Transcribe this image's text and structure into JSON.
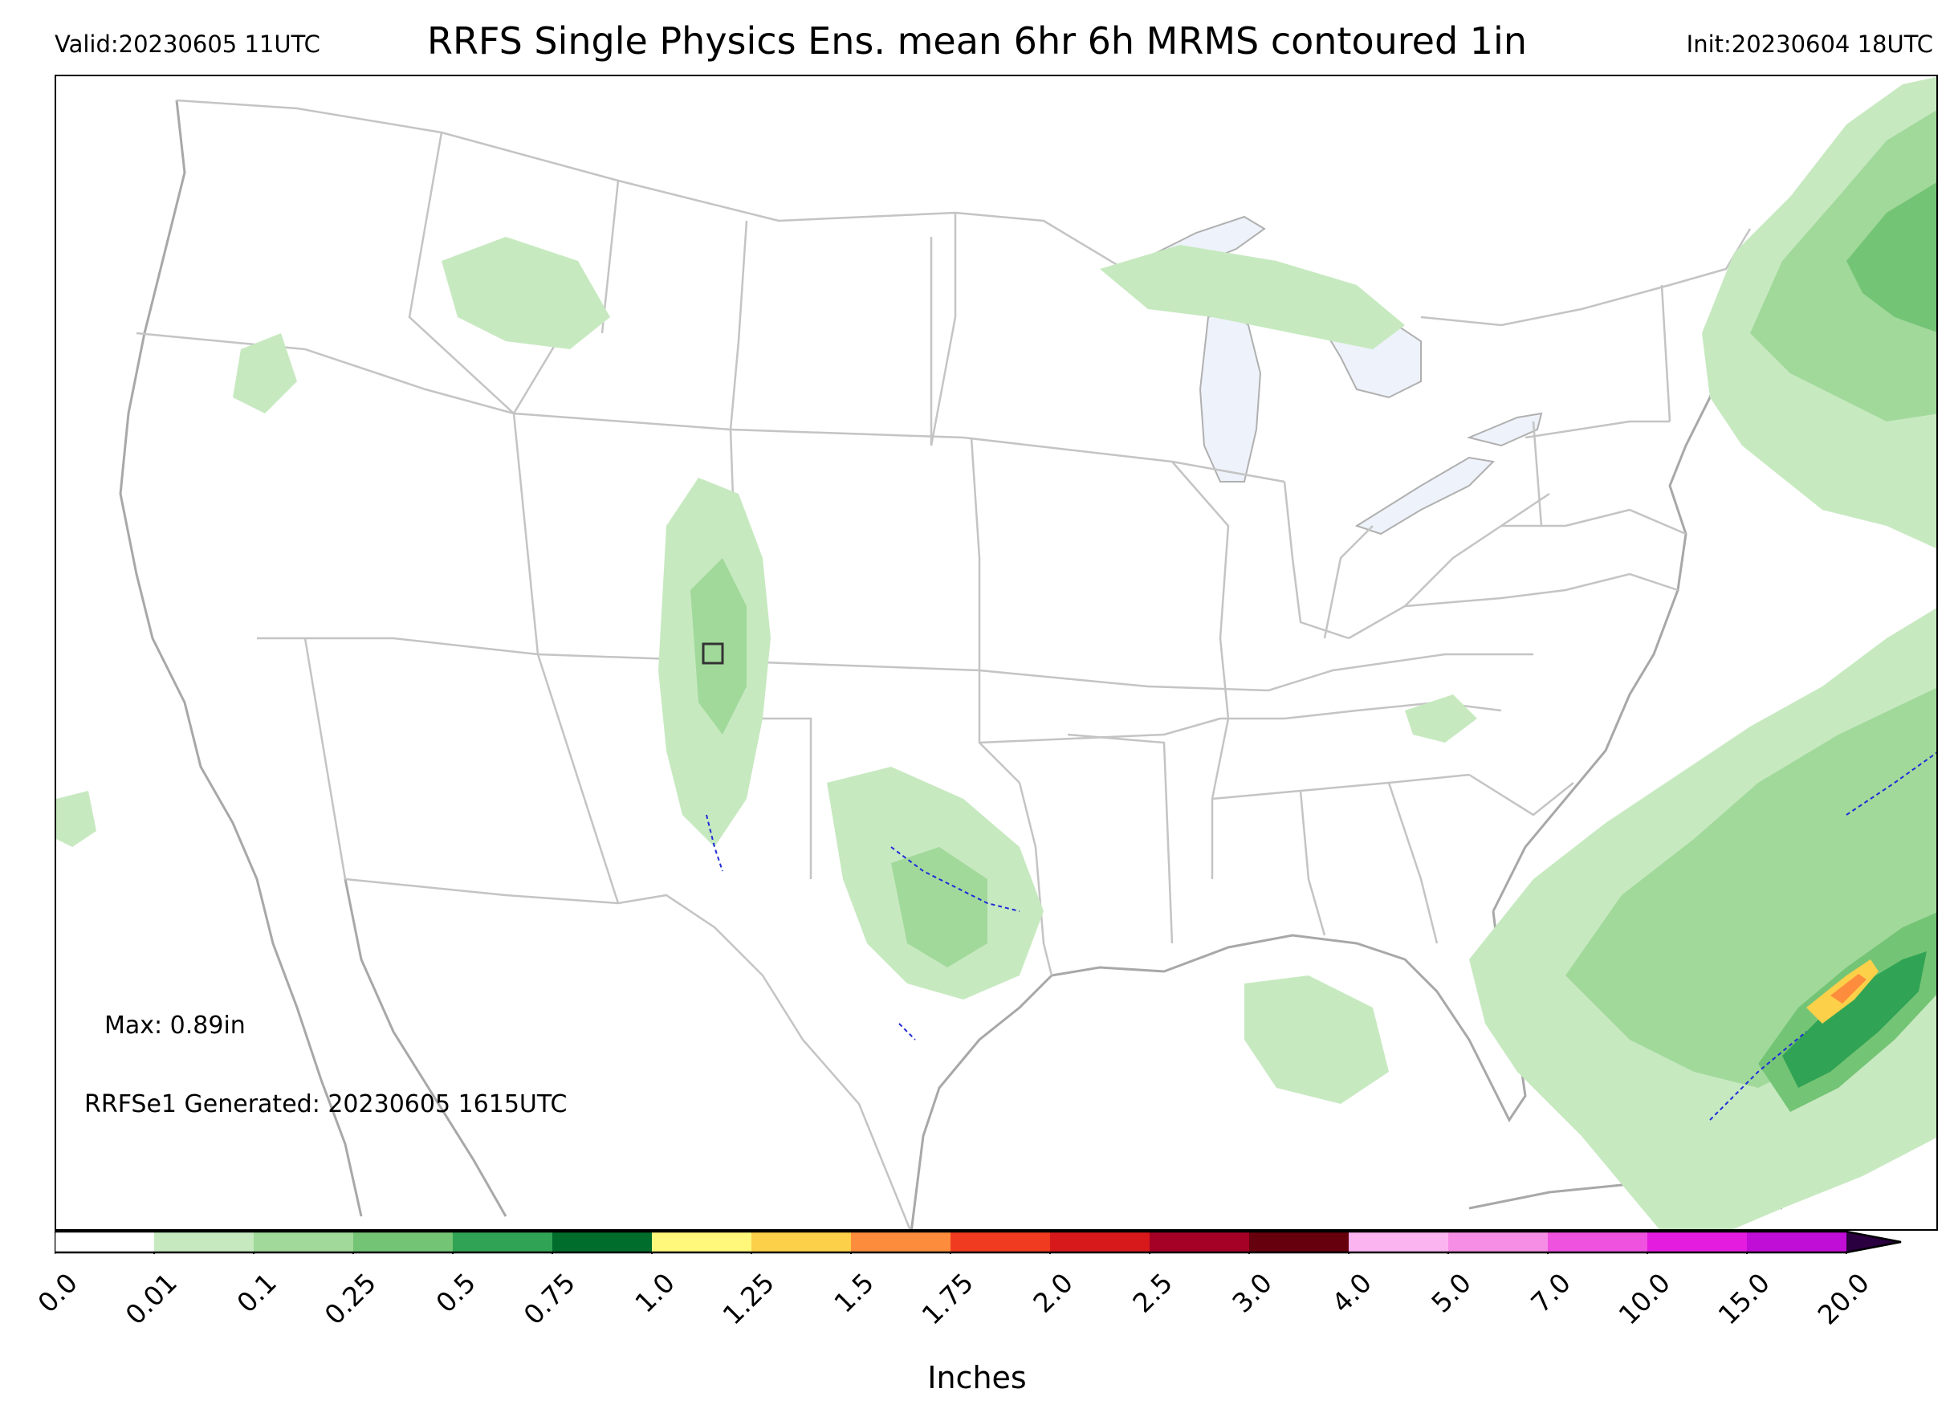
{
  "header": {
    "valid": "Valid:20230605 11UTC",
    "title": "RRFS Single Physics Ens. mean 6hr 6h MRMS contoured 1in",
    "init": "Init:20230604 18UTC"
  },
  "annotations": {
    "max": "Max: 0.89in",
    "generated": "RRFSe1 Generated: 20230605 1615UTC"
  },
  "colorbar": {
    "label": "Inches",
    "ticks": [
      "0.0",
      "0.01",
      "0.1",
      "0.25",
      "0.5",
      "0.75",
      "1.0",
      "1.25",
      "1.5",
      "1.75",
      "2.0",
      "2.5",
      "3.0",
      "4.0",
      "5.0",
      "7.0",
      "10.0",
      "15.0",
      "20.0"
    ],
    "colors": [
      "#ffffff",
      "#c7e9c0",
      "#a1d99b",
      "#74c476",
      "#31a354",
      "#006d2c",
      "#fff87a",
      "#fdd049",
      "#fd8d3c",
      "#f03b20",
      "#d7191c",
      "#a50026",
      "#67000d",
      "#fbb4f0",
      "#f78ee6",
      "#f052e0",
      "#e31ce0",
      "#c00ed6",
      "#8400c8"
    ],
    "extend_color": "#2b0040"
  },
  "map": {
    "type": "precipitation accumulation map, CONUS",
    "coast_color": "#a8a8a8",
    "border_color": "#c4c4c4",
    "lake_fill": "#eef2fa"
  }
}
